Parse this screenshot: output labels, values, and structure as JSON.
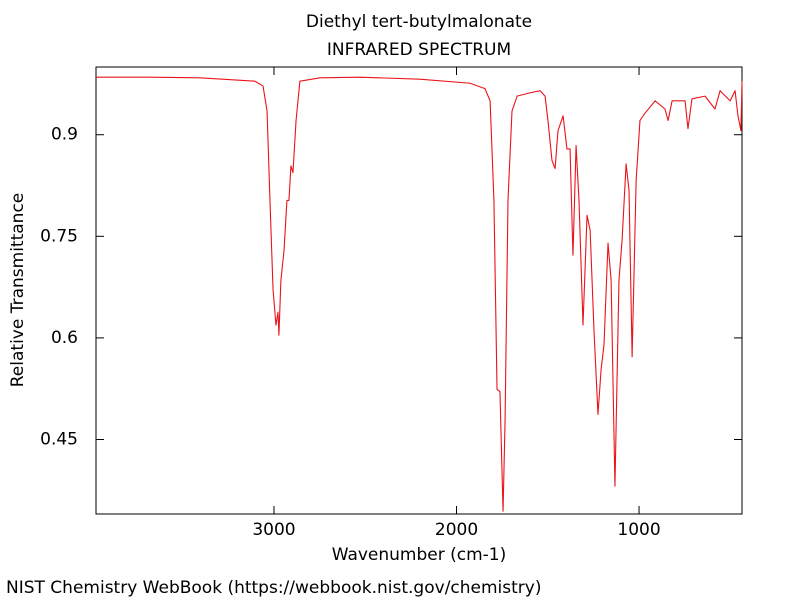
{
  "chart_data": {
    "type": "line",
    "title": "Diethyl tert-butylmalonate",
    "subtitle": "INFRARED SPECTRUM",
    "x_label": "Wavenumber (cm-1)",
    "y_label": "Relative Transmittance",
    "source": "NIST Chemistry WebBook (https://webbook.nist.gov/chemistry)",
    "xlim": [
      3975,
      436
    ],
    "ylim": [
      0.34,
      1.0
    ],
    "xticks": [
      3000,
      2000,
      1000
    ],
    "yticks": [
      0.9,
      0.75,
      0.6,
      0.45
    ],
    "grid": false,
    "x": [
      3975,
      3679,
      3405,
      3104,
      3060,
      3038,
      3022,
      3005,
      2989,
      2978,
      2973,
      2962,
      2945,
      2929,
      2918,
      2907,
      2896,
      2879,
      2858,
      2748,
      2529,
      2200,
      1926,
      1844,
      1816,
      1795,
      1778,
      1762,
      1751,
      1745,
      1734,
      1718,
      1696,
      1668,
      1597,
      1542,
      1515,
      1499,
      1477,
      1460,
      1444,
      1416,
      1395,
      1378,
      1362,
      1345,
      1329,
      1307,
      1285,
      1268,
      1247,
      1225,
      1208,
      1192,
      1170,
      1153,
      1132,
      1110,
      1093,
      1071,
      1055,
      1038,
      1016,
      995,
      967,
      912,
      858,
      841,
      819,
      748,
      732,
      710,
      638,
      584,
      556,
      501,
      474,
      458,
      442,
      436
    ],
    "series": [
      {
        "name": "Diethyl tert-butylmalonate",
        "color": "#e8141a",
        "values": [
          0.985,
          0.985,
          0.984,
          0.979,
          0.972,
          0.935,
          0.803,
          0.671,
          0.619,
          0.638,
          0.604,
          0.685,
          0.729,
          0.803,
          0.803,
          0.854,
          0.844,
          0.921,
          0.979,
          0.984,
          0.985,
          0.982,
          0.976,
          0.968,
          0.95,
          0.803,
          0.524,
          0.521,
          0.406,
          0.344,
          0.479,
          0.803,
          0.935,
          0.957,
          0.962,
          0.965,
          0.957,
          0.921,
          0.862,
          0.85,
          0.906,
          0.928,
          0.879,
          0.879,
          0.722,
          0.884,
          0.803,
          0.619,
          0.781,
          0.759,
          0.612,
          0.487,
          0.553,
          0.59,
          0.74,
          0.685,
          0.381,
          0.685,
          0.744,
          0.857,
          0.818,
          0.572,
          0.832,
          0.921,
          0.932,
          0.95,
          0.938,
          0.921,
          0.95,
          0.95,
          0.909,
          0.953,
          0.957,
          0.938,
          0.965,
          0.95,
          0.965,
          0.928,
          0.906,
          0.979
        ]
      }
    ]
  }
}
